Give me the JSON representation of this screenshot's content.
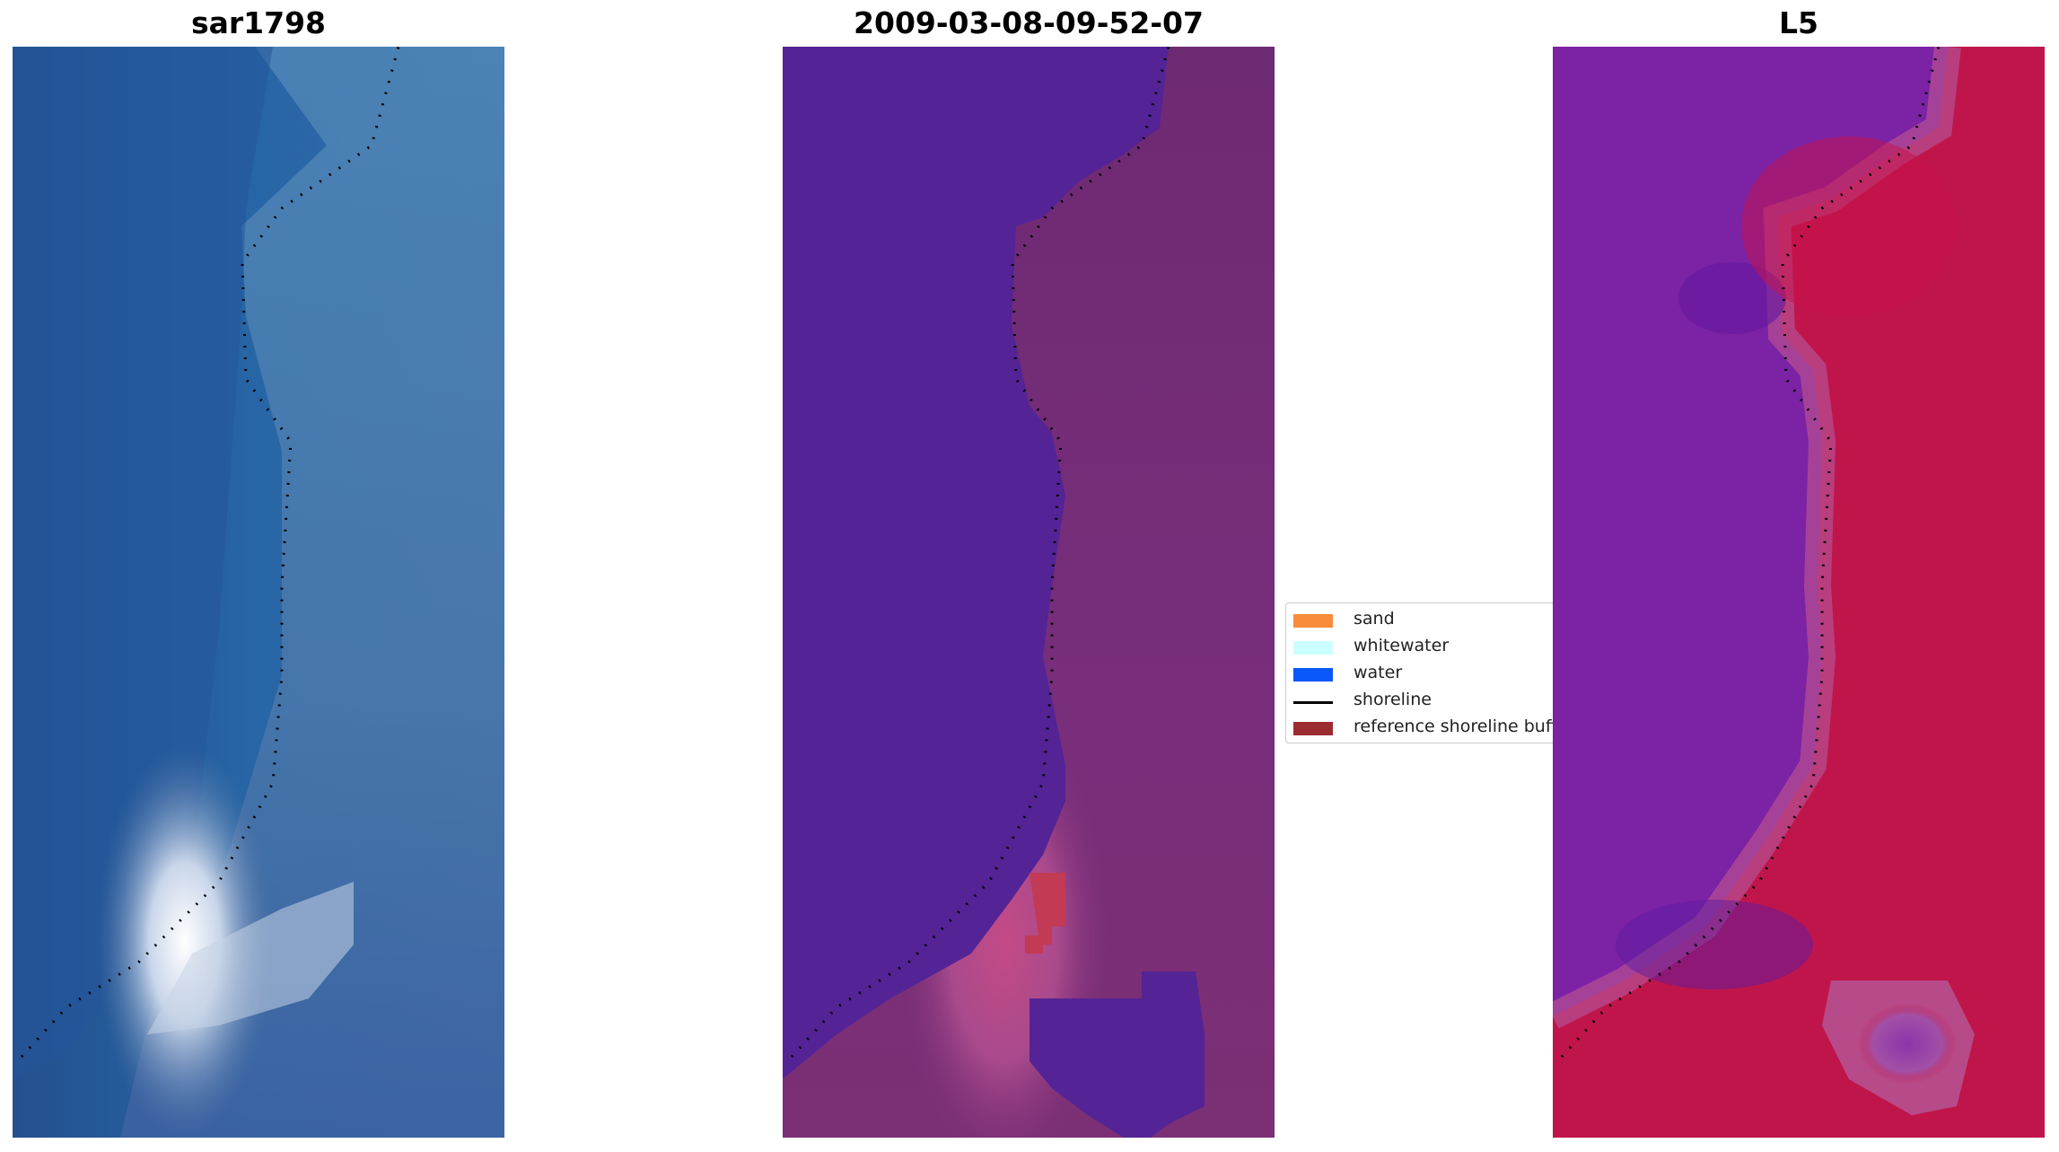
{
  "panels": [
    {
      "title": "sar1798",
      "palette": [
        "#23518f",
        "#2a6aa6",
        "#3a7db5",
        "#5a86b0",
        "#6a9ac0",
        "#4c6da5",
        "#2e5f9e"
      ]
    },
    {
      "title": "2009-03-08-09-52-07",
      "palette": [
        "#542396",
        "#6e2a7a",
        "#7a2d75",
        "#8b3a8a",
        "#a8588f",
        "#c84a6a"
      ]
    },
    {
      "title": "L5",
      "palette": [
        "#7b22a0",
        "#8a2aa8",
        "#6a1aa0",
        "#c01546",
        "#c8325f",
        "#a8489f"
      ]
    }
  ],
  "legend": {
    "items": [
      {
        "label": "sand",
        "color": "#f88c3b",
        "kind": "patch"
      },
      {
        "label": "whitewater",
        "color": "#ccffff",
        "kind": "patch"
      },
      {
        "label": "water",
        "color": "#0b58fa",
        "kind": "patch"
      },
      {
        "label": "shoreline",
        "color": "#000000",
        "kind": "line"
      },
      {
        "label": "reference shoreline buffer",
        "color": "#9b2d30",
        "kind": "patch"
      }
    ]
  }
}
